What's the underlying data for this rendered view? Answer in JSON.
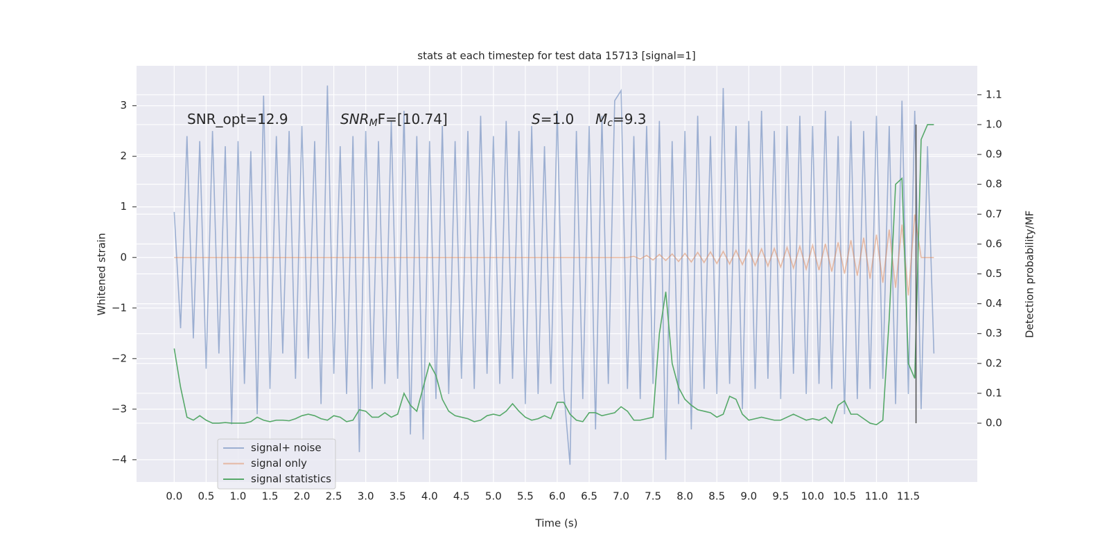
{
  "chart_data": {
    "type": "line",
    "title": "stats at each timestep for test data 15713 [signal=1]",
    "xlabel": "Time (s)",
    "ylabel": "Whitened strain",
    "y2label": "Detection probability/MF",
    "annotations": [
      {
        "text": "SNR_opt=12.9"
      },
      {
        "italic": "SNR",
        "sub": "M",
        "text": "F=[10.74]"
      },
      {
        "italic": "S",
        "text": "=1.0"
      },
      {
        "italic": "M",
        "sub": "c",
        "text": "=9.3"
      }
    ],
    "x": [
      0.0,
      0.1,
      0.2,
      0.3,
      0.4,
      0.5,
      0.6,
      0.7,
      0.8,
      0.9,
      1.0,
      1.1,
      1.2,
      1.3,
      1.4,
      1.5,
      1.6,
      1.7,
      1.8,
      1.9,
      2.0,
      2.1,
      2.2,
      2.3,
      2.4,
      2.5,
      2.6,
      2.7,
      2.8,
      2.9,
      3.0,
      3.1,
      3.2,
      3.3,
      3.4,
      3.5,
      3.6,
      3.7,
      3.8,
      3.9,
      4.0,
      4.1,
      4.2,
      4.3,
      4.4,
      4.5,
      4.6,
      4.7,
      4.8,
      4.9,
      5.0,
      5.1,
      5.2,
      5.3,
      5.4,
      5.5,
      5.6,
      5.7,
      5.8,
      5.9,
      6.0,
      6.1,
      6.2,
      6.3,
      6.4,
      6.5,
      6.6,
      6.7,
      6.8,
      6.9,
      7.0,
      7.1,
      7.2,
      7.3,
      7.4,
      7.5,
      7.6,
      7.7,
      7.8,
      7.9,
      8.0,
      8.1,
      8.2,
      8.3,
      8.4,
      8.5,
      8.6,
      8.7,
      8.8,
      8.9,
      9.0,
      9.1,
      9.2,
      9.3,
      9.4,
      9.5,
      9.6,
      9.7,
      9.8,
      9.9,
      10.0,
      10.1,
      10.2,
      10.3,
      10.4,
      10.5,
      10.6,
      10.7,
      10.8,
      10.9,
      11.0,
      11.1,
      11.2,
      11.3,
      11.4,
      11.5,
      11.6,
      11.7,
      11.8,
      11.9
    ],
    "series": [
      {
        "name": "signal+ noise",
        "color": "#4c72b0",
        "alpha": 0.5,
        "values": [
          0.9,
          -1.4,
          2.4,
          -1.6,
          2.3,
          -2.2,
          2.5,
          -1.9,
          2.2,
          -3.3,
          2.3,
          -2.5,
          2.1,
          -3.1,
          3.2,
          -2.6,
          2.4,
          -1.9,
          2.5,
          -2.4,
          2.6,
          -2.0,
          2.3,
          -2.9,
          3.4,
          -2.3,
          2.2,
          -2.7,
          2.4,
          -3.85,
          2.5,
          -2.6,
          2.3,
          -2.5,
          2.7,
          -2.4,
          2.9,
          -3.5,
          2.4,
          -3.6,
          2.3,
          -2.8,
          2.6,
          -2.7,
          2.3,
          -2.4,
          2.5,
          -2.6,
          2.8,
          -2.3,
          2.4,
          -2.5,
          2.7,
          -2.4,
          2.5,
          -2.9,
          2.6,
          -2.7,
          2.2,
          -2.5,
          2.9,
          -2.6,
          -4.1,
          2.5,
          -2.8,
          2.6,
          -3.4,
          2.8,
          -2.5,
          3.1,
          3.3,
          -2.6,
          2.4,
          -2.8,
          2.6,
          -2.5,
          2.7,
          -4.0,
          2.3,
          -2.9,
          2.5,
          -3.4,
          2.8,
          -2.6,
          2.4,
          -2.7,
          3.35,
          -2.5,
          2.6,
          -3.0,
          2.7,
          -2.6,
          2.9,
          -2.4,
          2.5,
          -2.8,
          2.6,
          -2.3,
          2.8,
          -2.7,
          2.6,
          -2.5,
          2.9,
          -2.6,
          2.4,
          -3.1,
          2.7,
          -2.8,
          2.5,
          -2.6,
          2.8,
          -2.4,
          2.6,
          -2.9,
          3.1,
          -2.7,
          2.9,
          -3.0,
          2.2,
          -1.9
        ]
      },
      {
        "name": "signal only",
        "color": "#dd8452",
        "alpha": 0.5,
        "values": [
          0,
          0,
          0,
          0,
          0,
          0,
          0,
          0,
          0,
          0,
          0,
          0,
          0,
          0,
          0,
          0,
          0,
          0,
          0,
          0,
          0,
          0,
          0,
          0,
          0,
          0,
          0,
          0,
          0,
          0,
          0,
          0,
          0,
          0,
          0,
          0,
          0,
          0,
          0,
          0,
          0,
          0,
          0,
          0,
          0,
          0,
          0,
          0,
          0,
          0,
          0,
          0,
          0,
          0,
          0,
          0,
          0,
          0,
          0,
          0,
          0,
          0,
          0,
          0,
          0,
          0,
          0,
          0,
          0,
          0,
          0,
          0,
          0.02,
          -0.03,
          0.04,
          -0.05,
          0.06,
          -0.06,
          0.07,
          -0.08,
          0.08,
          -0.09,
          0.1,
          -0.1,
          0.11,
          -0.12,
          0.12,
          -0.13,
          0.14,
          -0.14,
          0.15,
          -0.16,
          0.17,
          -0.17,
          0.18,
          -0.19,
          0.2,
          -0.21,
          0.22,
          -0.23,
          0.24,
          -0.25,
          0.27,
          -0.28,
          0.3,
          -0.32,
          0.34,
          -0.36,
          0.39,
          -0.42,
          0.45,
          -0.5,
          0.55,
          -0.6,
          0.65,
          -0.75,
          0.85,
          0,
          0,
          0
        ]
      },
      {
        "name": "signal statistics",
        "color": "#55a868",
        "alpha": 1,
        "axis": "y2",
        "values": [
          0.25,
          0.12,
          0.02,
          0.01,
          0.025,
          0.01,
          0.0,
          0.0,
          0.002,
          0.0,
          0.0,
          0.0,
          0.005,
          0.02,
          0.01,
          0.005,
          0.01,
          0.01,
          0.008,
          0.015,
          0.025,
          0.03,
          0.025,
          0.015,
          0.01,
          0.025,
          0.02,
          0.005,
          0.01,
          0.045,
          0.04,
          0.02,
          0.02,
          0.035,
          0.02,
          0.03,
          0.1,
          0.06,
          0.04,
          0.12,
          0.2,
          0.16,
          0.08,
          0.04,
          0.025,
          0.02,
          0.015,
          0.005,
          0.01,
          0.025,
          0.03,
          0.025,
          0.04,
          0.065,
          0.04,
          0.02,
          0.01,
          0.015,
          0.025,
          0.015,
          0.07,
          0.07,
          0.03,
          0.01,
          0.005,
          0.035,
          0.035,
          0.025,
          0.03,
          0.035,
          0.055,
          0.04,
          0.01,
          0.01,
          0.015,
          0.02,
          0.3,
          0.44,
          0.2,
          0.12,
          0.08,
          0.06,
          0.045,
          0.04,
          0.035,
          0.02,
          0.03,
          0.09,
          0.08,
          0.03,
          0.01,
          0.015,
          0.02,
          0.015,
          0.01,
          0.01,
          0.02,
          0.03,
          0.02,
          0.01,
          0.015,
          0.01,
          0.02,
          0.0,
          0.06,
          0.075,
          0.03,
          0.03,
          0.015,
          0.0,
          -0.005,
          0.01,
          0.35,
          0.8,
          0.82,
          0.2,
          0.15,
          0.95,
          1.0,
          1.0
        ]
      }
    ],
    "vline": {
      "x": 11.62,
      "ymin": 0.0,
      "ymax": 1.0,
      "color": "#555555"
    },
    "xlim": [
      -0.59,
      12.58
    ],
    "ylim": [
      -4.44,
      3.79
    ],
    "y2lim": [
      -0.197,
      1.197
    ],
    "xticks": [
      {
        "value": 0,
        "label": "0.0"
      },
      0.5,
      {
        "value": 1,
        "label": "1.0"
      },
      1.5,
      {
        "value": 2,
        "label": "2.0"
      },
      2.5,
      {
        "value": 3,
        "label": "3.0"
      },
      3.5,
      {
        "value": 4,
        "label": "4.0"
      },
      4.5,
      {
        "value": 5,
        "label": "5.0"
      },
      5.5,
      {
        "value": 6,
        "label": "6.0"
      },
      6.5,
      {
        "value": 7,
        "label": "7.0"
      },
      7.5,
      {
        "value": 8,
        "label": "8.0"
      },
      8.5,
      {
        "value": 9,
        "label": "9.0"
      },
      9.5,
      {
        "value": 10,
        "label": "10.0"
      },
      10.5,
      {
        "value": 11,
        "label": "11.0"
      },
      11.5
    ],
    "yticks": [
      {
        "value": -4,
        "label": "−4"
      },
      {
        "value": -3,
        "label": "−3"
      },
      {
        "value": -2,
        "label": "−2"
      },
      {
        "value": -1,
        "label": "−1"
      },
      0,
      1,
      2,
      3
    ],
    "y2ticks": [
      {
        "value": 0,
        "label": "0.0"
      },
      0.1,
      0.2,
      0.3,
      0.4,
      0.5,
      0.6,
      0.7,
      0.8,
      0.9,
      {
        "value": 1,
        "label": "1.0"
      },
      1.1
    ],
    "grid": true,
    "legend": "lower left",
    "background": "#eaeaf2"
  }
}
